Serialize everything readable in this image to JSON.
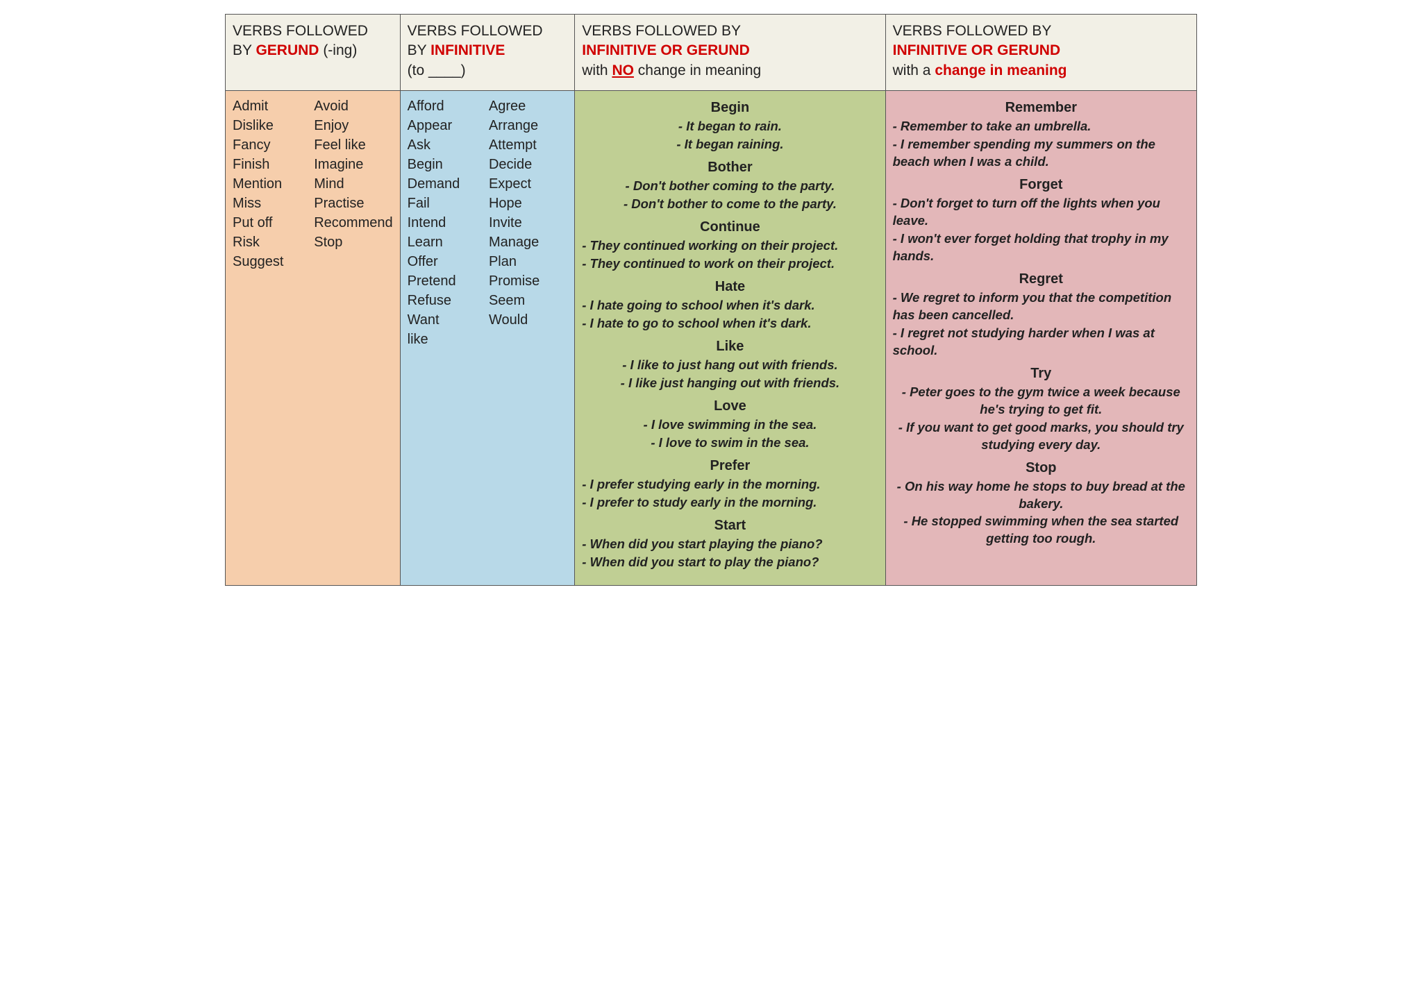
{
  "colors": {
    "header_bg": "#f2f0e6",
    "col1_bg": "#f6ceac",
    "col2_bg": "#b8d9e8",
    "col3_bg": "#c0cf94",
    "col4_bg": "#e3b7b9",
    "emphasis": "#d00000",
    "border": "#555555",
    "text": "#222222"
  },
  "typography": {
    "font_family": "Comic Sans MS",
    "header_fontsize_pt": 16,
    "body_fontsize_pt": 15,
    "example_fontsize_pt": 14
  },
  "columns": [
    {
      "header": {
        "p1": "VERBS FOLLOWED",
        "p2a": "BY ",
        "p2b": "GERUND",
        "p2c": " (-ing)"
      },
      "list_left": [
        "Admit",
        "Dislike",
        "Fancy",
        "Finish",
        "Mention",
        "Miss",
        "Put off",
        "Risk",
        "Suggest"
      ],
      "list_right": [
        "Avoid",
        "Enjoy",
        "Feel like",
        "Imagine",
        "Mind",
        "Practise",
        "Recommend",
        "Stop"
      ]
    },
    {
      "header": {
        "p1": "VERBS FOLLOWED",
        "p2a": "BY ",
        "p2b": "INFINITIVE",
        "p3": "(to ____)"
      },
      "list_left": [
        "Afford",
        "Appear",
        "Ask",
        "Begin",
        "Demand",
        "Fail",
        "Intend",
        "Learn",
        "Offer",
        "Pretend",
        "Refuse",
        "Want",
        "like"
      ],
      "list_right": [
        "Agree",
        "Arrange",
        "Attempt",
        "Decide",
        "Expect",
        "Hope",
        "Invite",
        "Manage",
        "Plan",
        "Promise",
        "Seem",
        "Would"
      ]
    },
    {
      "header": {
        "p1": "VERBS FOLLOWED BY",
        "p2b": "INFINITIVE OR GERUND",
        "p3a": "with ",
        "p3b": "NO",
        "p3c": " change in meaning"
      },
      "sections": [
        {
          "title": "Begin",
          "align": "center",
          "ex": [
            "- It began to rain.",
            "- It began raining."
          ]
        },
        {
          "title": "Bother",
          "align": "center",
          "ex": [
            "- Don't bother coming to the party.",
            "- Don't bother to come to the party."
          ]
        },
        {
          "title": "Continue",
          "align": "left",
          "ex": [
            "- They continued working on their project.",
            "- They continued to work on their project."
          ]
        },
        {
          "title": "Hate",
          "align": "left",
          "ex": [
            "- I hate going to school when it's dark.",
            "- I hate to go to school when it's dark."
          ]
        },
        {
          "title": "Like",
          "align": "center",
          "ex": [
            "- I like to just hang out with friends.",
            "- I like just hanging out with friends."
          ]
        },
        {
          "title": "Love",
          "align": "center",
          "ex": [
            "- I love swimming in the sea.",
            "- I love to swim in the sea."
          ]
        },
        {
          "title": "Prefer",
          "align": "left",
          "ex": [
            "- I prefer studying early in the morning.",
            "- I prefer to study early in the morning."
          ]
        },
        {
          "title": "Start",
          "align": "left",
          "ex": [
            "- When did you start playing the piano?",
            "- When did you start to play the piano?"
          ]
        }
      ]
    },
    {
      "header": {
        "p1": "VERBS FOLLOWED BY",
        "p2b": "INFINITIVE OR GERUND",
        "p3a": "with a ",
        "p3b2": "change in meaning"
      },
      "sections": [
        {
          "title": "Remember",
          "align": "left",
          "ex": [
            "- Remember to take an umbrella.",
            "- I remember spending my summers on the beach when I was a child."
          ]
        },
        {
          "title": "Forget",
          "align": "left",
          "ex": [
            "- Don't forget to turn off the lights when you leave.",
            "- I won't ever forget holding that trophy in my hands."
          ]
        },
        {
          "title": "Regret",
          "align": "left",
          "ex": [
            "- We regret to inform you that the competition has been cancelled.",
            "- I regret not studying harder when I was at school."
          ]
        },
        {
          "title": "Try",
          "align": "center",
          "ex": [
            "- Peter goes to the gym twice a week because he's trying to get fit.",
            "- If you want to get good marks, you should try studying every day."
          ]
        },
        {
          "title": "Stop",
          "align": "center",
          "ex": [
            "- On his way home he stops to buy bread at the bakery.",
            "- He stopped swimming when the sea started getting too rough."
          ]
        }
      ]
    }
  ]
}
